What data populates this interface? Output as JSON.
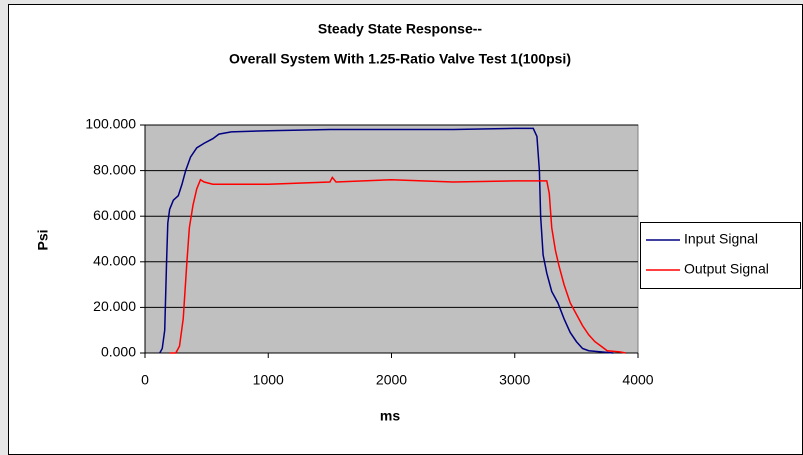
{
  "chart_data": {
    "type": "line",
    "title": [
      "Steady State Response--",
      "Overall System With 1.25-Ratio Valve Test 1(100psi)"
    ],
    "x_label": "ms",
    "y_label": "Psi",
    "xlim": [
      0,
      4000
    ],
    "xticks": [
      0,
      1000,
      2000,
      3000,
      4000
    ],
    "ylim": [
      0,
      100
    ],
    "yticks": [
      {
        "value": 0,
        "label": "0.000"
      },
      {
        "value": 20,
        "label": "20.000"
      },
      {
        "value": 40,
        "label": "40.000"
      },
      {
        "value": 60,
        "label": "60.000"
      },
      {
        "value": 80,
        "label": "80.000"
      },
      {
        "value": 100,
        "label": "100.000"
      }
    ],
    "grid": true,
    "legend": "right",
    "plot_background": "#c0c0c0",
    "series": [
      {
        "name": "Input Signal",
        "color": "#000080",
        "x": [
          120,
          140,
          160,
          175,
          185,
          200,
          230,
          270,
          300,
          330,
          370,
          420,
          480,
          550,
          600,
          700,
          1000,
          1500,
          2000,
          2500,
          3000,
          3150,
          3180,
          3200,
          3210,
          3230,
          3260,
          3300,
          3350,
          3400,
          3450,
          3500,
          3550,
          3600,
          3700,
          3800
        ],
        "values": [
          0,
          2,
          10,
          40,
          57,
          63,
          67,
          69,
          74,
          80,
          86,
          90,
          92,
          94,
          96,
          97,
          97.5,
          98,
          98,
          98,
          98.5,
          98.5,
          95,
          80,
          60,
          43,
          35,
          27,
          22,
          15,
          9,
          5,
          2,
          1,
          0.5,
          0
        ]
      },
      {
        "name": "Output Signal",
        "color": "#ff0000",
        "x": [
          200,
          250,
          280,
          310,
          340,
          360,
          390,
          420,
          450,
          480,
          550,
          700,
          1000,
          1500,
          1520,
          1550,
          2000,
          2500,
          3000,
          3260,
          3280,
          3300,
          3330,
          3360,
          3400,
          3450,
          3500,
          3550,
          3600,
          3650,
          3700,
          3750,
          3850,
          3900
        ],
        "values": [
          0,
          0,
          3,
          15,
          40,
          55,
          65,
          72,
          76,
          75,
          74,
          74,
          74,
          75,
          77,
          75,
          76,
          75,
          75.5,
          75.5,
          70,
          55,
          45,
          38,
          30,
          22,
          17,
          12,
          8,
          5,
          3,
          1,
          0.5,
          0
        ]
      }
    ]
  }
}
